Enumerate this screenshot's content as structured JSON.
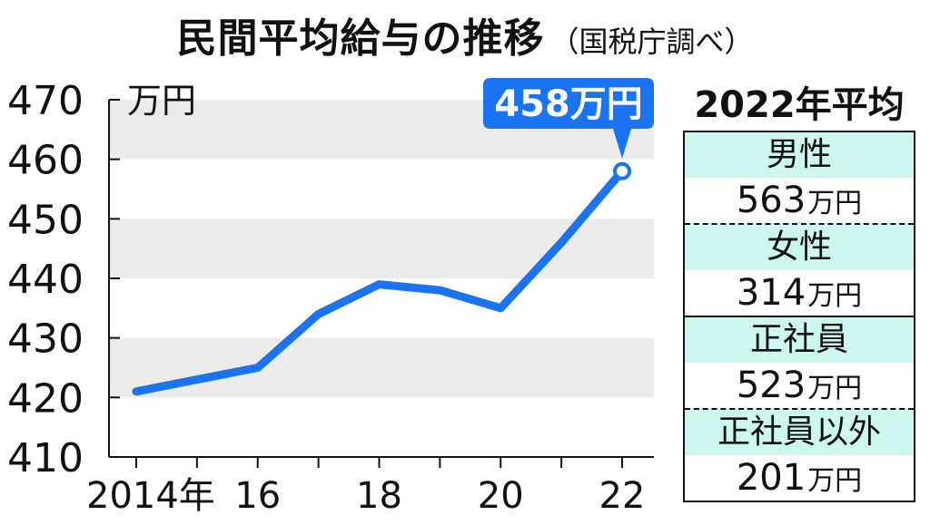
{
  "title": "民間平均給与の推移",
  "source": "（国税庁調べ）",
  "chart_data": {
    "type": "line",
    "title": "民間平均給与の推移",
    "unit": "万円",
    "x": [
      2014,
      2015,
      2016,
      2017,
      2018,
      2019,
      2020,
      2021,
      2022
    ],
    "series": [
      {
        "values": [
          421,
          423,
          425,
          434,
          439,
          438,
          435,
          446,
          458
        ]
      }
    ],
    "ylim": [
      410,
      470
    ],
    "yticks": [
      "470",
      "460",
      "450",
      "440",
      "430",
      "420",
      "410"
    ],
    "xticks": [
      {
        "x": 2014,
        "label": "2014年"
      },
      {
        "x": 2016,
        "label": "16"
      },
      {
        "x": 2018,
        "label": "18"
      },
      {
        "x": 2020,
        "label": "20"
      },
      {
        "x": 2022,
        "label": "22"
      }
    ],
    "grid": "alternating horizontal bands",
    "colors": {
      "line": "#1a73f0",
      "band": "#ebebeb",
      "callout": "#1a73f0"
    },
    "annotation": {
      "x": 2022,
      "text": "458万円"
    }
  },
  "panel": {
    "title": "2022年平均",
    "unit": "万円",
    "groups": [
      {
        "items": [
          {
            "label": "男性",
            "value": "563"
          },
          {
            "label": "女性",
            "value": "314"
          }
        ]
      },
      {
        "items": [
          {
            "label": "正社員",
            "value": "523"
          },
          {
            "label": "正社員以外",
            "value": "201"
          }
        ]
      }
    ]
  }
}
